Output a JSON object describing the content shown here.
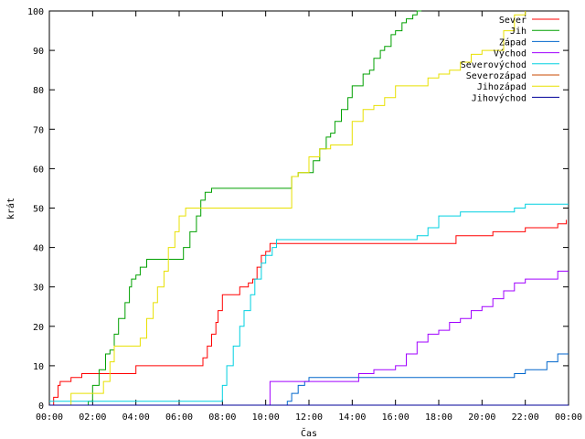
{
  "chart_data": {
    "type": "line",
    "title": "",
    "xlabel": "Čas",
    "ylabel": "krát",
    "xlim": [
      0,
      24
    ],
    "ylim": [
      0,
      100
    ],
    "x_ticks": [
      "00:00",
      "02:00",
      "04:00",
      "06:00",
      "08:00",
      "10:00",
      "12:00",
      "14:00",
      "16:00",
      "18:00",
      "20:00",
      "22:00",
      "00:00"
    ],
    "y_ticks": [
      0,
      10,
      20,
      30,
      40,
      50,
      60,
      70,
      80,
      90,
      100
    ],
    "grid": false,
    "legend_position": "top-right",
    "series": [
      {
        "name": "Sever",
        "color": "#ff0000",
        "x": [
          0,
          0.2,
          0.4,
          0.5,
          1.0,
          1.5,
          2.0,
          4.0,
          7.0,
          7.1,
          7.3,
          7.5,
          7.7,
          7.8,
          8.0,
          8.2,
          8.8,
          9.2,
          9.4,
          9.6,
          9.8,
          10.0,
          10.2,
          10.5,
          11.0,
          12.0,
          14.0,
          16.0,
          18.0,
          18.8,
          19.5,
          20.5,
          21.5,
          22.0,
          23.5,
          23.9
        ],
        "y": [
          0,
          2,
          5,
          6,
          7,
          8,
          8,
          10,
          10,
          12,
          15,
          18,
          21,
          24,
          28,
          28,
          30,
          31,
          32,
          35,
          38,
          39,
          41,
          41,
          41,
          41,
          41,
          41,
          41,
          43,
          43,
          44,
          44,
          45,
          46,
          47
        ]
      },
      {
        "name": "Jih",
        "color": "#00a000",
        "x": [
          0,
          1.8,
          2.0,
          2.3,
          2.6,
          2.8,
          3.0,
          3.2,
          3.5,
          3.7,
          3.8,
          4.0,
          4.2,
          4.5,
          4.8,
          5.0,
          5.5,
          6.0,
          6.2,
          6.5,
          6.8,
          7.0,
          7.2,
          7.5,
          8.0,
          10.0,
          11.0,
          11.2,
          11.5,
          12.0,
          12.2,
          12.5,
          12.8,
          13.0,
          13.2,
          13.5,
          13.8,
          14.0,
          14.2,
          14.5,
          14.8,
          15.0,
          15.3,
          15.5,
          15.8,
          16.0,
          16.3,
          16.5,
          16.8,
          17.0,
          17.2
        ],
        "y": [
          0,
          1,
          5,
          9,
          13,
          14,
          18,
          22,
          26,
          30,
          32,
          33,
          35,
          37,
          37,
          37,
          37,
          37,
          40,
          44,
          48,
          52,
          54,
          55,
          55,
          55,
          55,
          58,
          59,
          59,
          62,
          65,
          68,
          69,
          72,
          75,
          78,
          81,
          81,
          84,
          85,
          88,
          90,
          91,
          94,
          95,
          97,
          98,
          99,
          100,
          100
        ]
      },
      {
        "name": "Západ",
        "color": "#0066cc",
        "x": [
          0,
          10.8,
          11.0,
          11.2,
          11.5,
          11.8,
          12.0,
          14.0,
          16.0,
          18.0,
          20.0,
          21.0,
          21.5,
          22.0,
          23.0,
          23.5,
          24.0
        ],
        "y": [
          0,
          0,
          1,
          3,
          5,
          6,
          7,
          7,
          7,
          7,
          7,
          7,
          8,
          9,
          11,
          13,
          13
        ]
      },
      {
        "name": "Východ",
        "color": "#a000ff",
        "x": [
          0,
          10.0,
          10.2,
          12.0,
          14.0,
          14.3,
          15.0,
          16.0,
          16.5,
          17.0,
          17.5,
          18.0,
          18.5,
          19.0,
          19.5,
          20.0,
          20.5,
          21.0,
          21.5,
          22.0,
          22.5,
          23.0,
          23.5,
          24.0
        ],
        "y": [
          0,
          0,
          6,
          6,
          6,
          8,
          9,
          10,
          13,
          16,
          18,
          19,
          21,
          22,
          24,
          25,
          27,
          29,
          31,
          32,
          32,
          32,
          34,
          34
        ]
      },
      {
        "name": "Severovýchod",
        "color": "#00d0e0",
        "x": [
          0,
          7.8,
          8.0,
          8.2,
          8.5,
          8.8,
          9.0,
          9.3,
          9.5,
          9.8,
          10.0,
          10.3,
          10.5,
          11.0,
          12.0,
          14.0,
          15.0,
          16.0,
          17.0,
          17.5,
          18.0,
          19.0,
          20.0,
          21.0,
          21.5,
          22.0,
          23.0,
          24.0
        ],
        "y": [
          1,
          1,
          5,
          10,
          15,
          20,
          24,
          28,
          32,
          36,
          38,
          40,
          42,
          42,
          42,
          42,
          42,
          42,
          43,
          45,
          48,
          49,
          49,
          49,
          50,
          51,
          51,
          51
        ]
      },
      {
        "name": "Severozápad",
        "color": "#c84800",
        "x": [
          0,
          24
        ],
        "y": [
          0,
          0
        ]
      },
      {
        "name": "Jihozápad",
        "color": "#e8e000",
        "x": [
          0,
          0.8,
          1.0,
          2.0,
          2.5,
          2.8,
          3.0,
          3.5,
          4.0,
          4.2,
          4.5,
          4.8,
          5.0,
          5.3,
          5.5,
          5.8,
          6.0,
          6.3,
          6.5,
          7.0,
          8.0,
          9.0,
          10.0,
          11.0,
          11.2,
          11.5,
          12.0,
          12.5,
          13.0,
          13.5,
          14.0,
          14.5,
          15.0,
          15.5,
          16.0,
          16.5,
          17.0,
          17.5,
          18.0,
          18.5,
          19.0,
          19.5,
          20.0,
          21.0,
          21.5,
          22.0
        ],
        "y": [
          0,
          0,
          3,
          3,
          6,
          11,
          15,
          15,
          15,
          17,
          22,
          26,
          30,
          34,
          40,
          44,
          48,
          50,
          50,
          50,
          50,
          50,
          50,
          50,
          58,
          59,
          63,
          65,
          66,
          66,
          72,
          75,
          76,
          78,
          81,
          81,
          81,
          83,
          84,
          85,
          87,
          89,
          90,
          95,
          99,
          100
        ]
      },
      {
        "name": "Jihovýchod",
        "color": "#000099",
        "x": [
          0,
          24
        ],
        "y": [
          0,
          0
        ]
      }
    ]
  }
}
